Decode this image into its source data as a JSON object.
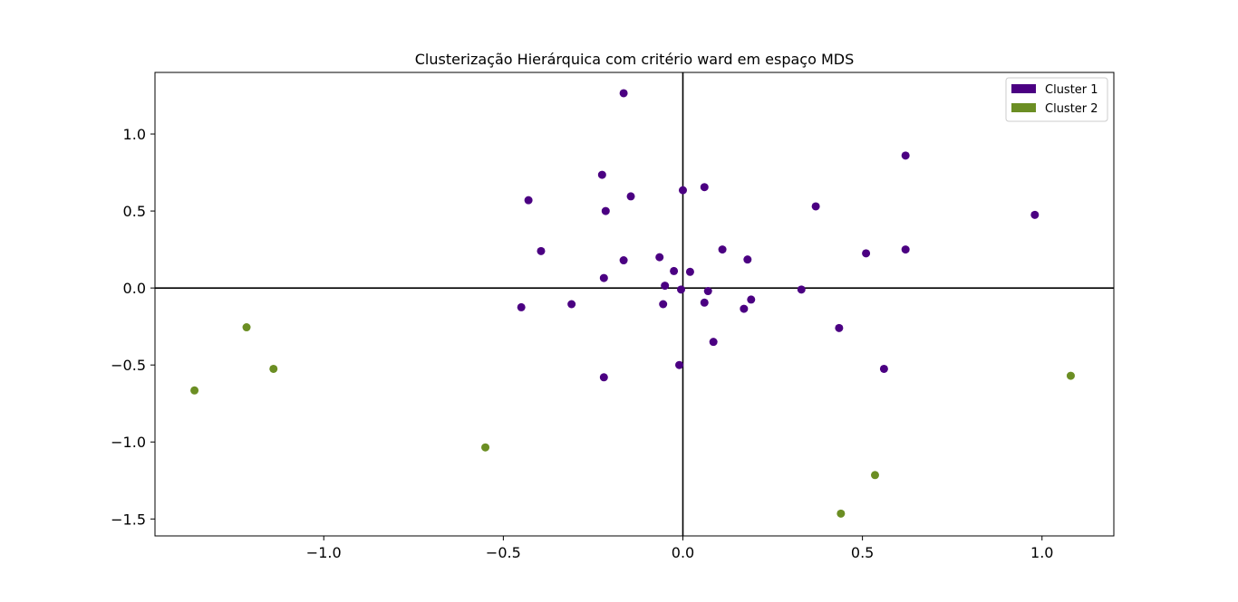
{
  "chart_data": {
    "type": "scatter",
    "title": "Clusterização Hierárquica com critério ward em espaço MDS",
    "xlabel": "",
    "ylabel": "",
    "xlim": [
      -1.47,
      1.2
    ],
    "ylim": [
      -1.61,
      1.4
    ],
    "xticks": [
      -1.0,
      -0.5,
      0.0,
      0.5,
      1.0
    ],
    "xtick_labels": [
      "−1.0",
      "−0.5",
      "0.0",
      "0.5",
      "1.0"
    ],
    "yticks": [
      1.0,
      0.5,
      0.0,
      -0.5,
      -1.0,
      -1.5
    ],
    "ytick_labels": [
      "1.0",
      "0.5",
      "0.0",
      "−0.5",
      "−1.0",
      "−1.5"
    ],
    "grid": false,
    "reference_lines": {
      "x": 0.0,
      "y": 0.0
    },
    "legend_position": "top-right",
    "series": [
      {
        "name": "Cluster 1",
        "color": "#4b0082",
        "points": [
          [
            -0.165,
            1.265
          ],
          [
            0.62,
            0.86
          ],
          [
            -0.225,
            0.735
          ],
          [
            0.06,
            0.655
          ],
          [
            0.0,
            0.635
          ],
          [
            -0.145,
            0.595
          ],
          [
            -0.43,
            0.57
          ],
          [
            0.37,
            0.53
          ],
          [
            -0.215,
            0.5
          ],
          [
            0.98,
            0.475
          ],
          [
            0.11,
            0.25
          ],
          [
            0.62,
            0.25
          ],
          [
            -0.395,
            0.24
          ],
          [
            0.51,
            0.225
          ],
          [
            -0.065,
            0.2
          ],
          [
            0.18,
            0.185
          ],
          [
            -0.165,
            0.18
          ],
          [
            -0.025,
            0.11
          ],
          [
            0.02,
            0.105
          ],
          [
            -0.22,
            0.065
          ],
          [
            -0.05,
            0.015
          ],
          [
            -0.005,
            -0.01
          ],
          [
            0.07,
            -0.02
          ],
          [
            0.33,
            -0.01
          ],
          [
            0.19,
            -0.075
          ],
          [
            0.06,
            -0.095
          ],
          [
            -0.055,
            -0.105
          ],
          [
            -0.31,
            -0.105
          ],
          [
            -0.45,
            -0.125
          ],
          [
            0.17,
            -0.135
          ],
          [
            0.435,
            -0.26
          ],
          [
            0.085,
            -0.35
          ],
          [
            -0.01,
            -0.5
          ],
          [
            0.56,
            -0.525
          ],
          [
            -0.22,
            -0.58
          ]
        ]
      },
      {
        "name": "Cluster 2",
        "color": "#6b8e23",
        "points": [
          [
            -1.215,
            -0.255
          ],
          [
            -1.14,
            -0.525
          ],
          [
            -1.36,
            -0.665
          ],
          [
            -0.55,
            -1.035
          ],
          [
            1.08,
            -0.57
          ],
          [
            0.535,
            -1.215
          ],
          [
            0.44,
            -1.465
          ]
        ]
      }
    ]
  }
}
